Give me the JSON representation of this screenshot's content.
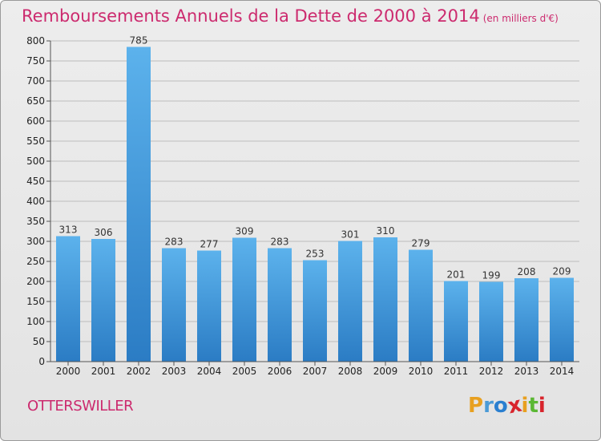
{
  "title": "Remboursements Annuels de la Dette de 2000 à 2014",
  "unit_note": "(en milliers d'€)",
  "commune": "OTTERSWILLER",
  "logo": {
    "letters": [
      "P",
      "r",
      "o",
      "x",
      "i",
      "t",
      "i"
    ],
    "colors": [
      "#e8a020",
      "#4a9ad6",
      "#2a7fd0",
      "#d8242c",
      "#e8a020",
      "#5bb834",
      "#d8242c"
    ]
  },
  "colors": {
    "title": "#cc2a6e",
    "bar_top": "#5cb2ec",
    "bar_bottom": "#2b7cc4",
    "grid": "#bdbdbd"
  },
  "chart_data": {
    "type": "bar",
    "title": "Remboursements Annuels de la Dette de 2000 à 2014",
    "categories": [
      "2000",
      "2001",
      "2002",
      "2003",
      "2004",
      "2005",
      "2006",
      "2007",
      "2008",
      "2009",
      "2010",
      "2011",
      "2012",
      "2013",
      "2014"
    ],
    "values": [
      313,
      306,
      785,
      283,
      277,
      309,
      283,
      253,
      301,
      310,
      279,
      201,
      199,
      208,
      209
    ],
    "ylim": [
      0,
      800
    ],
    "yticks": [
      0,
      50,
      100,
      150,
      200,
      250,
      300,
      350,
      400,
      450,
      500,
      550,
      600,
      650,
      700,
      750,
      800
    ],
    "grid": true,
    "data_labels": true
  }
}
